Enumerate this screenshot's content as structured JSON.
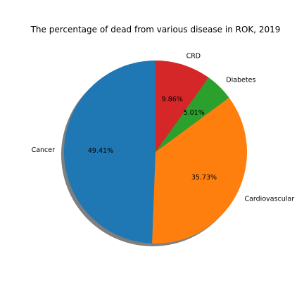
{
  "chart_data": {
    "type": "pie",
    "title": "The percentage of dead from various disease in ROK, 2019",
    "categories": [
      "Cancer",
      "Cardiovascular",
      "Diabetes",
      "CRD"
    ],
    "values": [
      49.41,
      35.73,
      5.01,
      9.86
    ],
    "value_labels": [
      "49.41%",
      "35.73%",
      "5.01%",
      "9.86%"
    ],
    "colors": [
      "#1f77b4",
      "#ff7f0e",
      "#2ca02c",
      "#d62728"
    ],
    "start_angle_deg": 90,
    "direction": "counterclockwise",
    "shadow": true,
    "legend": false
  }
}
